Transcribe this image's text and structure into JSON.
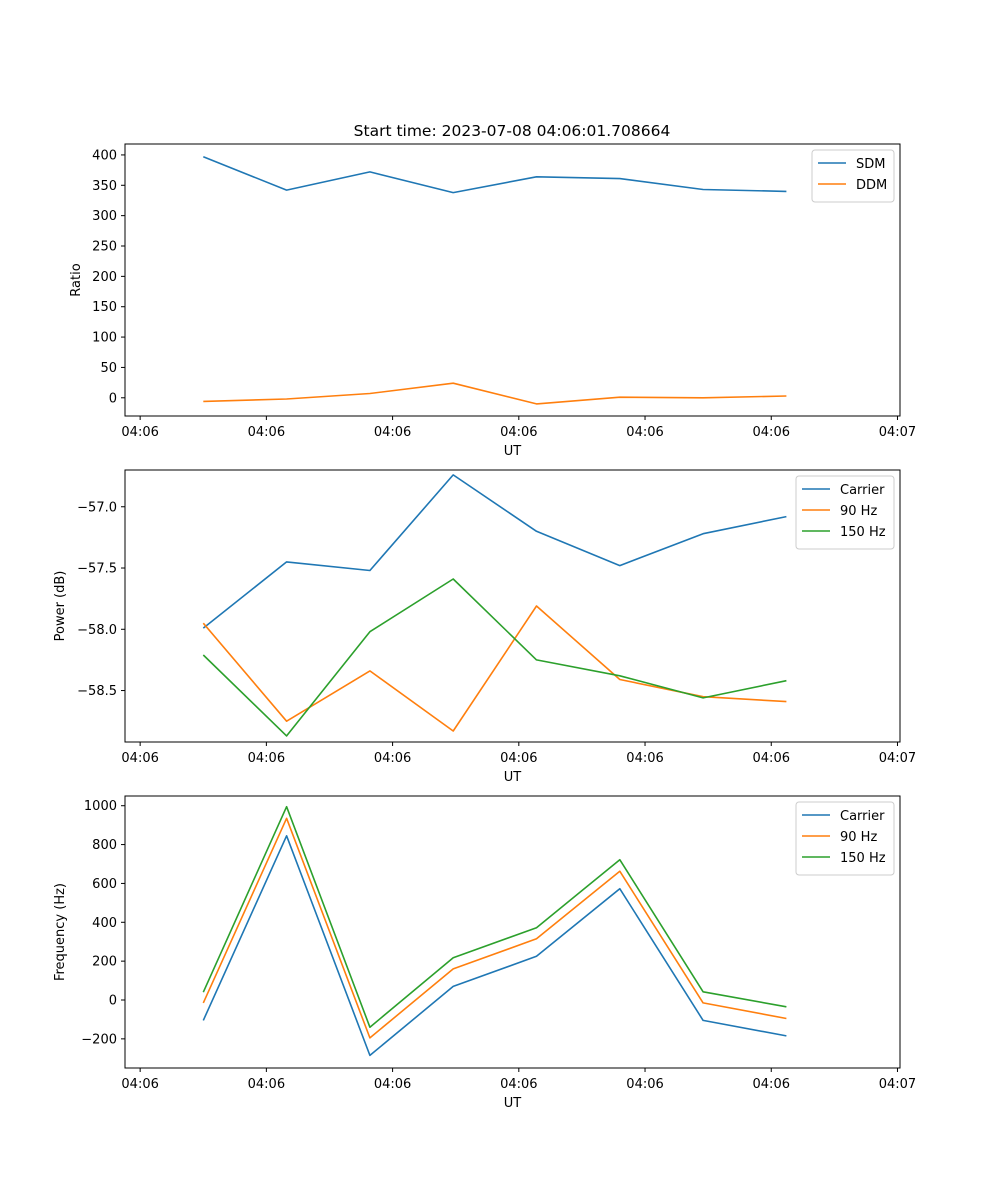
{
  "title": "Start time: 2023-07-08 04:06:01.708664",
  "colors": {
    "blue": "#1f77b4",
    "orange": "#ff7f0e",
    "green": "#2ca02c"
  },
  "chart_data": [
    {
      "type": "line",
      "xlabel": "UT",
      "ylabel": "Ratio",
      "x_tick_labels": [
        "04:06",
        "04:06",
        "04:06",
        "04:06",
        "04:06",
        "04:06",
        "04:07"
      ],
      "xlim": [
        -0.12,
        6.02
      ],
      "x": [
        0.5,
        1.16,
        1.82,
        2.48,
        3.14,
        3.8,
        4.46,
        5.12
      ],
      "ylim": [
        -30,
        418
      ],
      "yticks": [
        0,
        50,
        100,
        150,
        200,
        250,
        300,
        350,
        400
      ],
      "legend": "top-right",
      "series": [
        {
          "name": "SDM",
          "color": "#1f77b4",
          "values": [
            397,
            342,
            372,
            338,
            364,
            361,
            343,
            340
          ]
        },
        {
          "name": "DDM",
          "color": "#ff7f0e",
          "values": [
            -6,
            -2,
            7,
            24,
            -10,
            1,
            0,
            3
          ]
        }
      ]
    },
    {
      "type": "line",
      "xlabel": "UT",
      "ylabel": "Power (dB)",
      "x_tick_labels": [
        "04:06",
        "04:06",
        "04:06",
        "04:06",
        "04:06",
        "04:06",
        "04:07"
      ],
      "xlim": [
        -0.12,
        6.02
      ],
      "x": [
        0.5,
        1.16,
        1.82,
        2.48,
        3.14,
        3.8,
        4.46,
        5.12
      ],
      "ylim": [
        -58.92,
        -56.7
      ],
      "yticks": [
        -58.5,
        -58.0,
        -57.5,
        -57.0
      ],
      "ytick_labels": [
        "−58.5",
        "−58.0",
        "−57.5",
        "−57.0"
      ],
      "legend": "top-right",
      "series": [
        {
          "name": "Carrier",
          "color": "#1f77b4",
          "values": [
            -57.99,
            -57.45,
            -57.52,
            -56.74,
            -57.2,
            -57.48,
            -57.22,
            -57.08
          ]
        },
        {
          "name": "90 Hz",
          "color": "#ff7f0e",
          "values": [
            -57.95,
            -58.75,
            -58.34,
            -58.83,
            -57.81,
            -58.41,
            -58.55,
            -58.59
          ]
        },
        {
          "name": "150 Hz",
          "color": "#2ca02c",
          "values": [
            -58.21,
            -58.87,
            -58.02,
            -57.59,
            -58.25,
            -58.38,
            -58.56,
            -58.42
          ]
        }
      ]
    },
    {
      "type": "line",
      "xlabel": "UT",
      "ylabel": "Frequency (Hz)",
      "x_tick_labels": [
        "04:06",
        "04:06",
        "04:06",
        "04:06",
        "04:06",
        "04:06",
        "04:07"
      ],
      "xlim": [
        -0.12,
        6.02
      ],
      "x": [
        0.5,
        1.16,
        1.82,
        2.48,
        3.14,
        3.8,
        4.46,
        5.12
      ],
      "ylim": [
        -350,
        1050
      ],
      "yticks": [
        -200,
        0,
        200,
        400,
        600,
        800,
        1000
      ],
      "ytick_labels": [
        "−200",
        "0",
        "200",
        "400",
        "600",
        "800",
        "1000"
      ],
      "legend": "top-right",
      "series": [
        {
          "name": "Carrier",
          "color": "#1f77b4",
          "values": [
            -105,
            845,
            -285,
            70,
            225,
            573,
            -105,
            -185
          ]
        },
        {
          "name": "90 Hz",
          "color": "#ff7f0e",
          "values": [
            -15,
            935,
            -195,
            160,
            315,
            663,
            -15,
            -95
          ]
        },
        {
          "name": "150 Hz",
          "color": "#2ca02c",
          "values": [
            40,
            995,
            -140,
            217,
            372,
            722,
            42,
            -35
          ]
        }
      ]
    }
  ]
}
